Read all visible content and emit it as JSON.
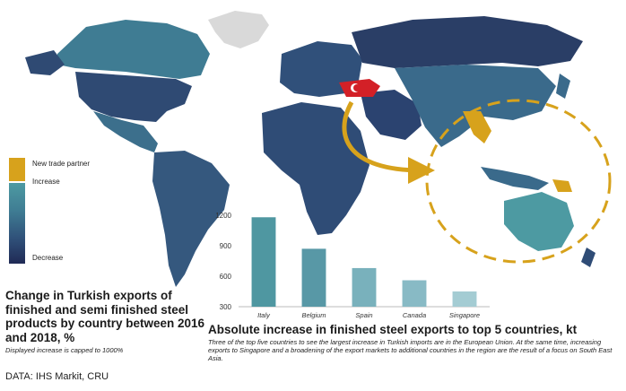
{
  "colors": {
    "new_trade_partner": "#d7a21c",
    "increase": "#4d9aa2",
    "decrease": "#202a55",
    "bar": "#4f97a1",
    "ocean": "#ffffff",
    "unknown": "#d9d9d9"
  },
  "legend": {
    "items": [
      "New trade partner",
      "Increase",
      "Decrease"
    ]
  },
  "map": {
    "title": "Change in Turkish exports of finished and semi finished steel products by country between 2016 and 2018, %",
    "note": "Displayed increase is capped to 1000%"
  },
  "source": "DATA: IHS Markit, CRU",
  "chart_data": {
    "type": "bar",
    "title": "Absolute increase in finished steel exports to top 5 countries, kt",
    "description": "Three of the top five countries to see the largest increase in Turkish imports are in the European Union. At the same time, increasing exports to Singapore and a broadening of the export markets to additional countries in the region are the result of a focus on South East Asia.",
    "categories": [
      "Italy",
      "Belgium",
      "Spain",
      "Canada",
      "Singapore"
    ],
    "values": [
      1180,
      870,
      680,
      560,
      450
    ],
    "ylim": [
      300,
      1200
    ],
    "yticks": [
      "1200",
      "900",
      "600",
      "300"
    ],
    "ytick_values": [
      1200,
      900,
      600,
      300
    ],
    "grid": false,
    "bar_colors": [
      "#4f97a1",
      "#5898a6",
      "#79b1bc",
      "#88bac5",
      "#a4ccd3"
    ]
  }
}
